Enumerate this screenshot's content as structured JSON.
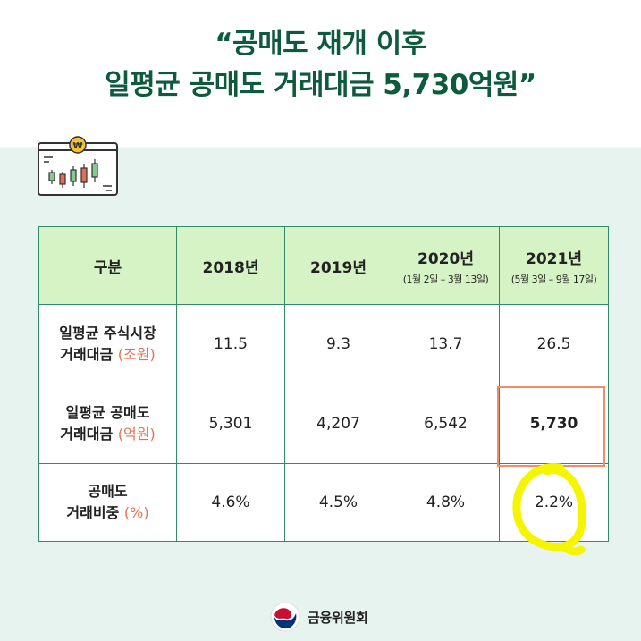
{
  "headline": {
    "line1": "“공매도 재개 이후",
    "line2": "일평균 공매도 거래대금 5,730억원”"
  },
  "table": {
    "header": {
      "category": "구분",
      "y2018": "2018년",
      "y2019": "2019년",
      "y2020": "2020년",
      "y2020_range": "(1월 2일 – 3월 13일)",
      "y2021": "2021년",
      "y2021_range": "(5월 3일 – 9월 17일)"
    },
    "rows": [
      {
        "label_line1": "일평균 주식시장",
        "label_line2": "거래대금",
        "unit": "(조원)",
        "values": [
          "11.5",
          "9.3",
          "13.7",
          "26.5"
        ]
      },
      {
        "label_line1": "일평균 공매도",
        "label_line2": "거래대금",
        "unit": "(억원)",
        "values": [
          "5,301",
          "4,207",
          "6,542",
          "5,730"
        ]
      },
      {
        "label_line1": "공매도",
        "label_line2": "거래비중",
        "unit": "(%)",
        "values": [
          "4.6%",
          "4.5%",
          "4.8%",
          "2.2%"
        ]
      }
    ]
  },
  "footer": {
    "org_name": "금융위원회"
  },
  "colors": {
    "headline": "#0e5a3c",
    "header_fill": "#d6f3c5",
    "border": "#2f8a67",
    "unit_accent": "#e8704e",
    "panel": "#e6f3ef",
    "highlight_box": "#f08b6b",
    "highlight_mark": "#f5f500"
  },
  "icons": [
    "candlestick-chart-icon",
    "won-coin-icon",
    "korean-government-logo-icon"
  ]
}
